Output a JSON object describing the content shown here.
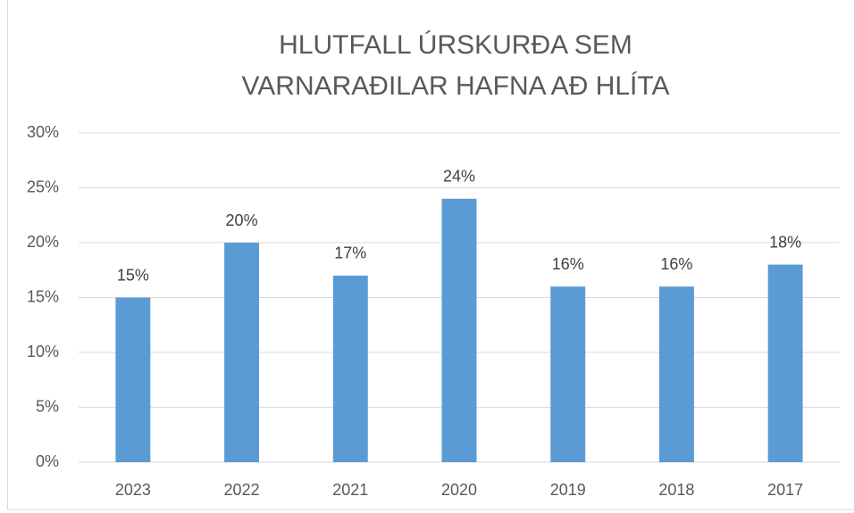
{
  "chart_data": {
    "type": "bar",
    "title": [
      "HLUTFALL ÚRSKURÐA SEM",
      "VARNARAÐILAR HAFNA AÐ HLÍTA"
    ],
    "categories": [
      "2023",
      "2022",
      "2021",
      "2020",
      "2019",
      "2018",
      "2017"
    ],
    "values": [
      15,
      20,
      17,
      24,
      16,
      16,
      18
    ],
    "value_labels": [
      "15%",
      "20%",
      "17%",
      "24%",
      "16%",
      "16%",
      "18%"
    ],
    "color": "#5b9bd5",
    "ylim": [
      0,
      30
    ],
    "yticks": [
      {
        "value": 0,
        "label": "0%"
      },
      {
        "value": 5,
        "label": "5%"
      },
      {
        "value": 10,
        "label": "10%"
      },
      {
        "value": 15,
        "label": "15%"
      },
      {
        "value": 20,
        "label": "20%"
      },
      {
        "value": 25,
        "label": "25%"
      },
      {
        "value": 30,
        "label": "30%"
      }
    ],
    "grid": true
  }
}
